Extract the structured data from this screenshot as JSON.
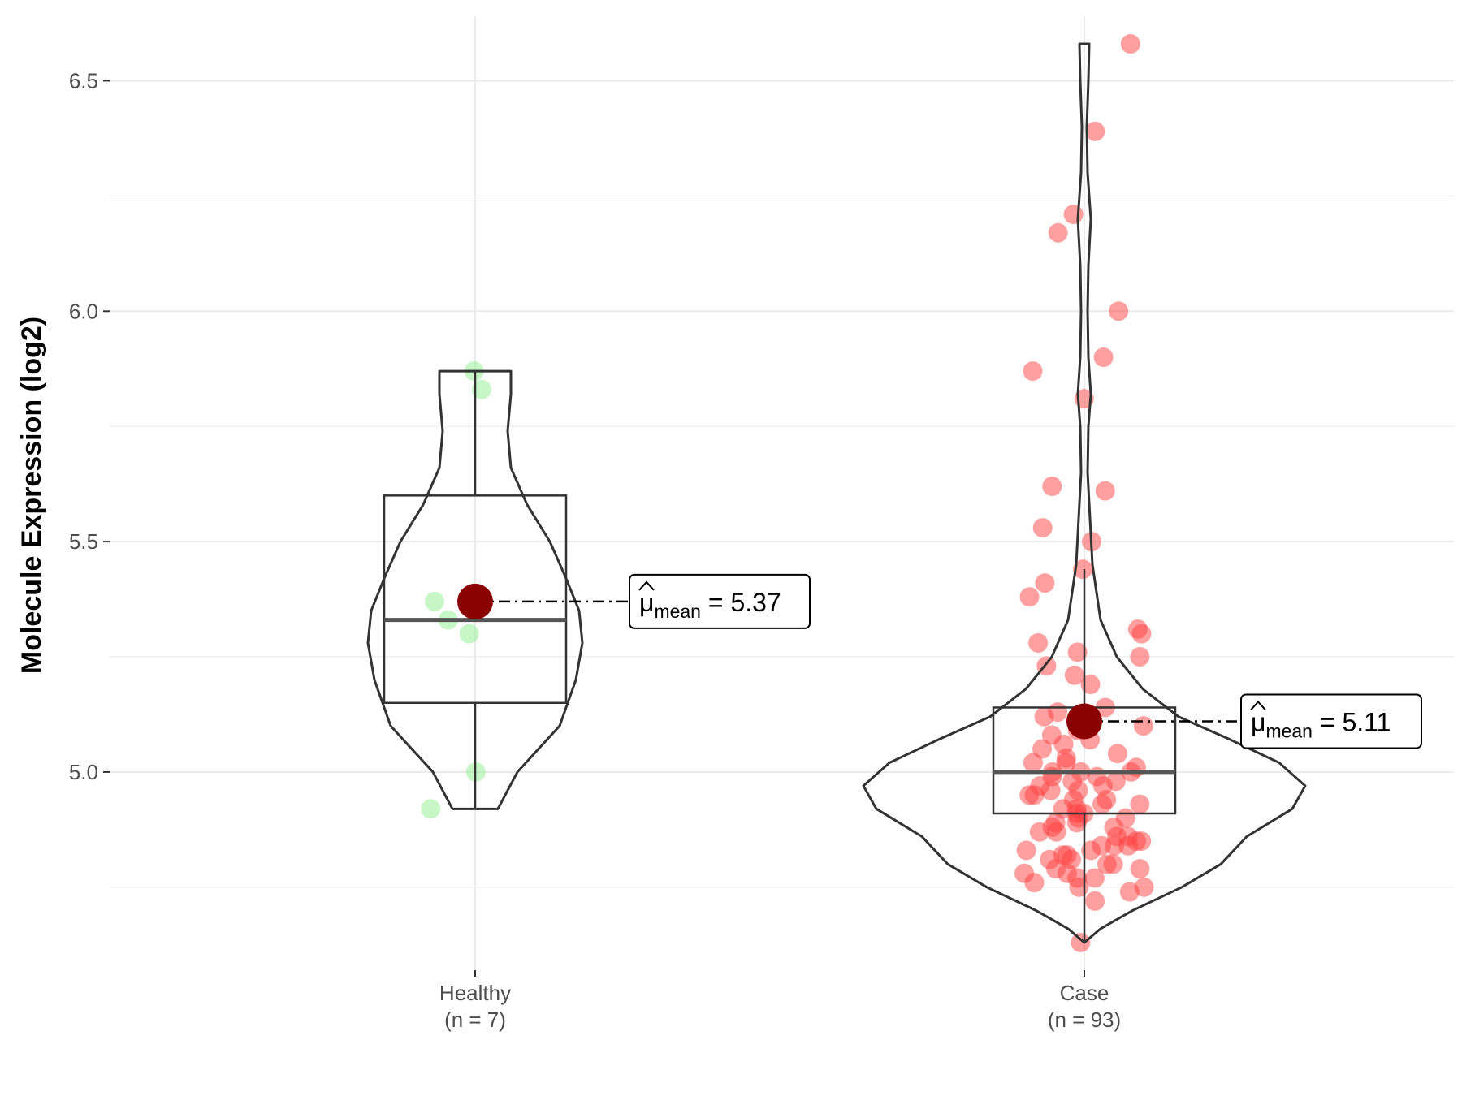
{
  "chart_data": {
    "type": "violin-box-jitter",
    "ylabel": "Molecule Expression (log2)",
    "xlabel": "",
    "ylim": [
      4.57,
      6.64
    ],
    "yticks": [
      5.0,
      5.5,
      6.0,
      6.5
    ],
    "ytick_labels": [
      "5.0",
      "5.5",
      "6.0",
      "6.5"
    ],
    "grid": true,
    "groups": [
      {
        "key": "healthy",
        "name": "Healthy",
        "n_label": "(n = 7)",
        "color": "#90ee90",
        "box": {
          "min": 4.92,
          "q1": 5.15,
          "median": 5.33,
          "q3": 5.6,
          "max": 5.87
        },
        "mean": 5.37,
        "mean_label": "5.37",
        "points": [
          5.87,
          5.83,
          5.37,
          5.33,
          5.3,
          5.0,
          4.92
        ],
        "violin": [
          [
            4.92,
            0.14
          ],
          [
            5.0,
            0.26
          ],
          [
            5.1,
            0.52
          ],
          [
            5.2,
            0.62
          ],
          [
            5.28,
            0.66
          ],
          [
            5.35,
            0.64
          ],
          [
            5.42,
            0.56
          ],
          [
            5.5,
            0.46
          ],
          [
            5.58,
            0.32
          ],
          [
            5.66,
            0.22
          ],
          [
            5.74,
            0.2
          ],
          [
            5.82,
            0.22
          ],
          [
            5.87,
            0.22
          ]
        ]
      },
      {
        "key": "case",
        "name": "Case",
        "n_label": "(n = 93)",
        "color": "#ff4040",
        "box": {
          "min": 4.63,
          "q1": 4.91,
          "median": 5.0,
          "q3": 5.14,
          "max": 5.44
        },
        "mean": 5.11,
        "mean_label": "5.11",
        "points": [
          6.58,
          6.39,
          6.21,
          6.17,
          6.0,
          5.9,
          5.87,
          5.81,
          5.62,
          5.61,
          5.53,
          5.5,
          5.44,
          5.41,
          5.38,
          5.31,
          5.3,
          5.28,
          5.26,
          5.25,
          5.23,
          5.21,
          5.19,
          5.14,
          5.13,
          5.12,
          5.1,
          5.09,
          5.08,
          5.07,
          5.06,
          5.05,
          5.04,
          5.03,
          5.02,
          5.02,
          5.01,
          5.0,
          5.0,
          5.0,
          4.99,
          4.99,
          4.98,
          4.98,
          4.97,
          4.97,
          4.96,
          4.96,
          4.95,
          4.95,
          4.94,
          4.94,
          4.93,
          4.93,
          4.92,
          4.92,
          4.91,
          4.91,
          4.9,
          4.9,
          4.89,
          4.89,
          4.88,
          4.88,
          4.87,
          4.87,
          4.86,
          4.86,
          4.85,
          4.85,
          4.84,
          4.84,
          4.84,
          4.83,
          4.83,
          4.82,
          4.82,
          4.81,
          4.81,
          4.8,
          4.8,
          4.79,
          4.79,
          4.78,
          4.78,
          4.77,
          4.77,
          4.76,
          4.75,
          4.75,
          4.74,
          4.72,
          4.63
        ],
        "violin": [
          [
            4.63,
            0.0
          ],
          [
            4.66,
            0.1
          ],
          [
            4.7,
            0.3
          ],
          [
            4.75,
            0.6
          ],
          [
            4.8,
            0.84
          ],
          [
            4.86,
            1.0
          ],
          [
            4.92,
            1.28
          ],
          [
            4.97,
            1.36
          ],
          [
            5.02,
            1.2
          ],
          [
            5.07,
            0.9
          ],
          [
            5.12,
            0.58
          ],
          [
            5.18,
            0.36
          ],
          [
            5.25,
            0.2
          ],
          [
            5.33,
            0.1
          ],
          [
            5.45,
            0.05
          ],
          [
            5.55,
            0.035
          ],
          [
            5.65,
            0.02
          ],
          [
            5.75,
            0.025
          ],
          [
            5.82,
            0.04
          ],
          [
            5.9,
            0.025
          ],
          [
            6.0,
            0.02
          ],
          [
            6.1,
            0.025
          ],
          [
            6.2,
            0.04
          ],
          [
            6.3,
            0.02
          ],
          [
            6.4,
            0.015
          ],
          [
            6.5,
            0.025
          ],
          [
            6.58,
            0.03
          ]
        ]
      }
    ]
  },
  "colors": {
    "mean_dot": "#8b0000",
    "box_stroke": "#333333",
    "grid": "#ebebeb"
  }
}
